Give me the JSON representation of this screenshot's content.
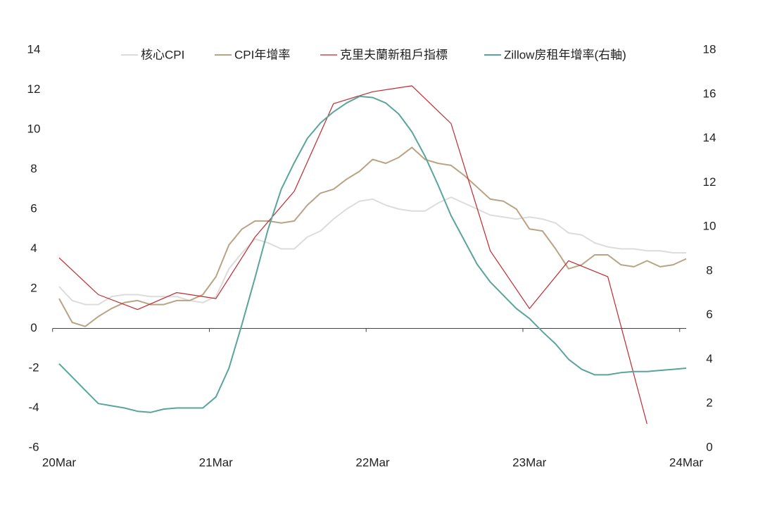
{
  "chart_data": {
    "type": "line",
    "x": [
      "2020-03",
      "2020-04",
      "2020-05",
      "2020-06",
      "2020-07",
      "2020-08",
      "2020-09",
      "2020-10",
      "2020-11",
      "2020-12",
      "2021-01",
      "2021-02",
      "2021-03",
      "2021-04",
      "2021-05",
      "2021-06",
      "2021-07",
      "2021-08",
      "2021-09",
      "2021-10",
      "2021-11",
      "2021-12",
      "2022-01",
      "2022-02",
      "2022-03",
      "2022-04",
      "2022-05",
      "2022-06",
      "2022-07",
      "2022-08",
      "2022-09",
      "2022-10",
      "2022-11",
      "2022-12",
      "2023-01",
      "2023-02",
      "2023-03",
      "2023-04",
      "2023-05",
      "2023-06",
      "2023-07",
      "2023-08",
      "2023-09",
      "2023-10",
      "2023-11",
      "2023-12",
      "2024-01",
      "2024-02",
      "2024-03"
    ],
    "xlim": [
      "2020-03",
      "2024-03"
    ],
    "xticks": [
      {
        "value": "2020-03",
        "label": "20Mar"
      },
      {
        "value": "2021-03",
        "label": "21Mar"
      },
      {
        "value": "2022-03",
        "label": "22Mar"
      },
      {
        "value": "2023-03",
        "label": "23Mar"
      },
      {
        "value": "2024-03",
        "label": "24Mar"
      }
    ],
    "ylim": [
      -6,
      14
    ],
    "yticks": [
      -6,
      -4,
      -2,
      0,
      2,
      4,
      6,
      8,
      10,
      12,
      14
    ],
    "y2lim": [
      0,
      18
    ],
    "y2ticks": [
      0,
      2,
      4,
      6,
      8,
      10,
      12,
      14,
      16,
      18
    ],
    "grid": false,
    "legend": "top",
    "series": [
      {
        "name": "核心CPI",
        "color": "#dcdcdc",
        "values": [
          2.1,
          1.4,
          1.2,
          1.2,
          1.6,
          1.7,
          1.7,
          1.6,
          1.6,
          1.6,
          1.4,
          1.3,
          1.6,
          3.0,
          3.8,
          4.5,
          4.3,
          4.0,
          4.0,
          4.6,
          4.9,
          5.5,
          6.0,
          6.4,
          6.5,
          6.2,
          6.0,
          5.9,
          5.9,
          6.3,
          6.6,
          6.3,
          6.0,
          5.7,
          5.6,
          5.5,
          5.6,
          5.5,
          5.3,
          4.8,
          4.7,
          4.3,
          4.1,
          4.0,
          4.0,
          3.9,
          3.9,
          3.8,
          3.8
        ]
      },
      {
        "name": "CPI年增率",
        "color": "#b9a385",
        "values": [
          1.5,
          0.3,
          0.1,
          0.6,
          1.0,
          1.3,
          1.4,
          1.2,
          1.2,
          1.4,
          1.4,
          1.7,
          2.6,
          4.2,
          5.0,
          5.4,
          5.4,
          5.3,
          5.4,
          6.2,
          6.8,
          7.0,
          7.5,
          7.9,
          8.5,
          8.3,
          8.6,
          9.1,
          8.5,
          8.3,
          8.2,
          7.7,
          7.1,
          6.5,
          6.4,
          6.0,
          5.0,
          4.9,
          4.0,
          3.0,
          3.2,
          3.7,
          3.7,
          3.2,
          3.1,
          3.4,
          3.1,
          3.2,
          3.5
        ]
      },
      {
        "name": "克里夫蘭新租戶指標",
        "color": "#c0282d",
        "x": [
          "2020-03",
          "2020-06",
          "2020-09",
          "2020-12",
          "2021-03",
          "2021-06",
          "2021-09",
          "2021-12",
          "2022-03",
          "2022-06",
          "2022-09",
          "2022-12",
          "2023-03",
          "2023-06",
          "2023-09",
          "2023-12"
        ],
        "values": [
          3.55,
          1.7,
          0.95,
          1.8,
          1.5,
          4.6,
          6.9,
          11.3,
          11.9,
          12.2,
          10.3,
          3.9,
          1.0,
          3.4,
          2.6,
          -4.8
        ]
      },
      {
        "name": "Zillow房租年增率(右軸)",
        "color": "#5aa59a",
        "axis": "y2",
        "values": [
          3.8,
          3.2,
          2.6,
          2.0,
          1.9,
          1.8,
          1.65,
          1.6,
          1.75,
          1.8,
          1.8,
          1.8,
          2.3,
          3.6,
          5.6,
          7.7,
          9.9,
          11.7,
          12.9,
          14.0,
          14.7,
          15.2,
          15.6,
          15.9,
          15.85,
          15.6,
          15.1,
          14.3,
          13.2,
          11.9,
          10.5,
          9.4,
          8.3,
          7.5,
          6.9,
          6.3,
          5.85,
          5.25,
          4.7,
          4.0,
          3.55,
          3.3,
          3.3,
          3.4,
          3.45,
          3.45,
          3.5,
          3.55,
          3.6
        ]
      }
    ]
  }
}
